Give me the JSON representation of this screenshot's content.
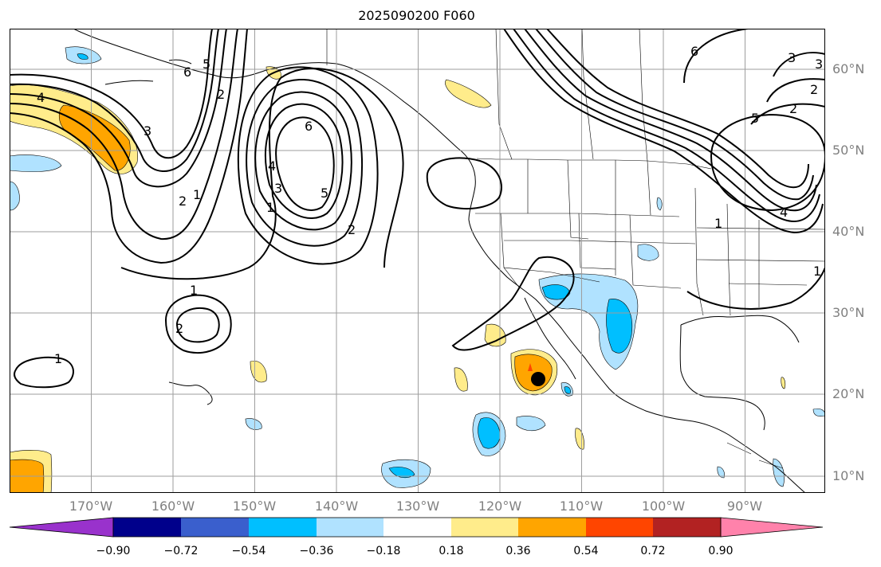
{
  "title": "2025090200 F060",
  "map": {
    "lat_labels": [
      "60°N",
      "50°N",
      "40°N",
      "30°N",
      "20°N",
      "10°N"
    ],
    "lon_labels": [
      "170°W",
      "160°W",
      "150°W",
      "140°W",
      "130°W",
      "120°W",
      "110°W",
      "100°W",
      "90°W"
    ],
    "contour_labels": [
      "4",
      "3",
      "2",
      "1",
      "6",
      "5",
      "6",
      "5",
      "4",
      "3",
      "2",
      "1",
      "2",
      "1",
      "2",
      "1",
      "6",
      "5",
      "4",
      "3",
      "2",
      "1",
      "3",
      "2",
      "1"
    ],
    "marker": "storm-center-marker"
  },
  "colorbar": {
    "labels": [
      "−0.90",
      "−0.72",
      "−0.54",
      "−0.36",
      "−0.18",
      "0.18",
      "0.36",
      "0.54",
      "0.72",
      "0.90"
    ],
    "colors": [
      "#9932cc",
      "#00008b",
      "#3a5fcd",
      "#00bfff",
      "#b0e2ff",
      "#ffffff",
      "#ffec8b",
      "#ffa500",
      "#ff4500",
      "#b22222",
      "#ff82ab"
    ]
  }
}
